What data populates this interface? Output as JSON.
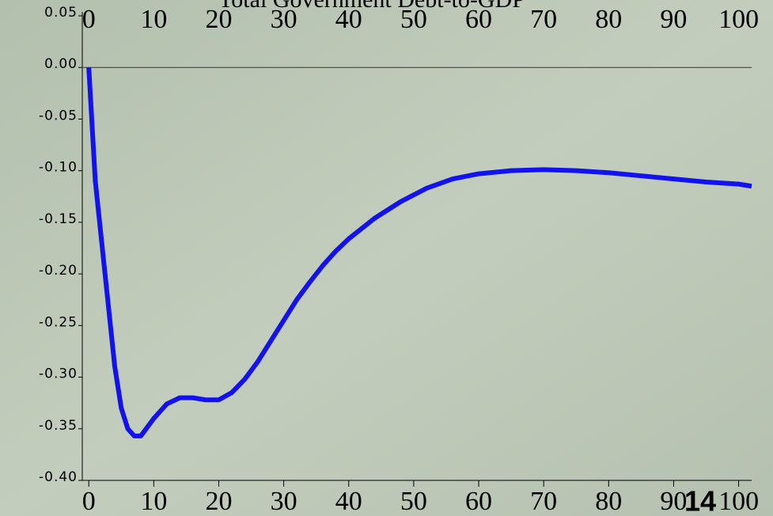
{
  "chart_data": {
    "type": "line",
    "title": "Total Government Debt-to-GDP",
    "x": [
      0,
      1,
      2,
      3,
      4,
      5,
      6,
      7,
      8,
      10,
      12,
      14,
      16,
      18,
      20,
      22,
      24,
      26,
      28,
      30,
      32,
      34,
      36,
      38,
      40,
      44,
      48,
      52,
      56,
      60,
      65,
      70,
      75,
      80,
      85,
      90,
      95,
      100,
      102
    ],
    "series": [
      {
        "color": "#1212ee",
        "values": [
          0,
          -0.11,
          -0.17,
          -0.23,
          -0.29,
          -0.33,
          -0.35,
          -0.357,
          -0.357,
          -0.34,
          -0.326,
          -0.32,
          -0.32,
          -0.322,
          -0.322,
          -0.315,
          -0.302,
          -0.285,
          -0.265,
          -0.245,
          -0.225,
          -0.208,
          -0.192,
          -0.178,
          -0.166,
          -0.146,
          -0.13,
          -0.117,
          -0.108,
          -0.103,
          -0.1,
          -0.099,
          -0.1,
          -0.102,
          -0.105,
          -0.108,
          -0.111,
          -0.113,
          -0.115
        ]
      }
    ],
    "xlim": [
      -1,
      102
    ],
    "xticks": [
      0,
      10,
      20,
      30,
      40,
      50,
      60,
      70,
      80,
      90,
      100
    ],
    "ylim": [
      -0.4,
      0.05
    ],
    "yticks": [
      0.05,
      {
        "value": 0,
        "label": "0.00"
      },
      -0.05,
      {
        "value": -0.1,
        "label": "-0.10"
      },
      -0.15,
      {
        "value": -0.2,
        "label": "-0.20"
      },
      -0.25,
      {
        "value": -0.3,
        "label": "-0.30"
      },
      -0.35,
      {
        "value": -0.4,
        "label": "-0.40"
      }
    ],
    "zero_line": true
  },
  "slide_number": "14"
}
